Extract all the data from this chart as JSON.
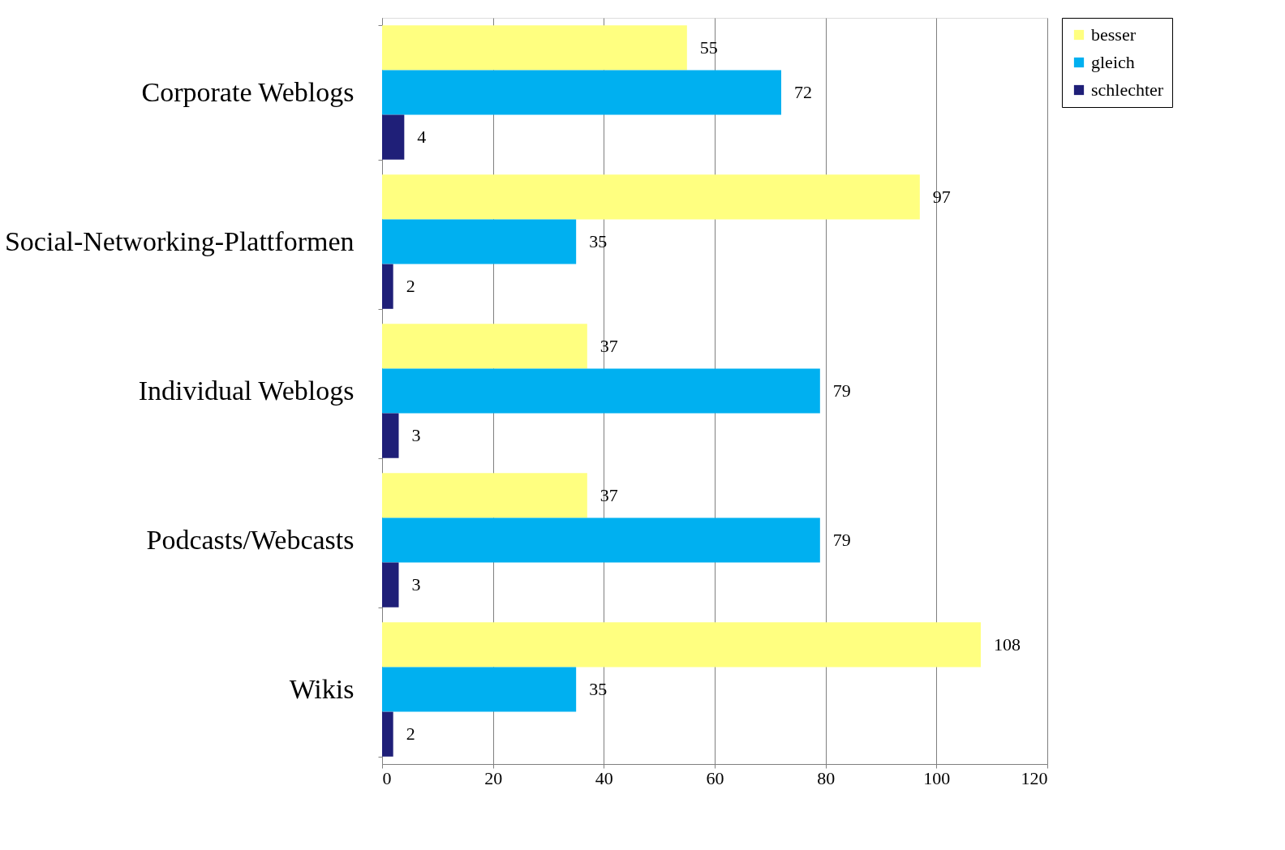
{
  "chart_data": {
    "type": "bar",
    "orientation": "horizontal",
    "categories": [
      "Corporate Weblogs",
      "Social-Networking-Plattformen",
      "Individual Weblogs",
      "Podcasts/Webcasts",
      "Wikis"
    ],
    "series": [
      {
        "name": "besser",
        "color": "#ffff80",
        "values": [
          55,
          97,
          37,
          37,
          108
        ]
      },
      {
        "name": "gleich",
        "color": "#00b0f0",
        "values": [
          72,
          35,
          79,
          79,
          35
        ]
      },
      {
        "name": "schlechter",
        "color": "#1f1f78",
        "values": [
          4,
          2,
          3,
          3,
          2
        ]
      }
    ],
    "xlim": [
      0,
      120
    ],
    "xticks": [
      0,
      20,
      40,
      60,
      80,
      100,
      120
    ],
    "grid": "x",
    "legend": "right",
    "data_labels": true
  }
}
